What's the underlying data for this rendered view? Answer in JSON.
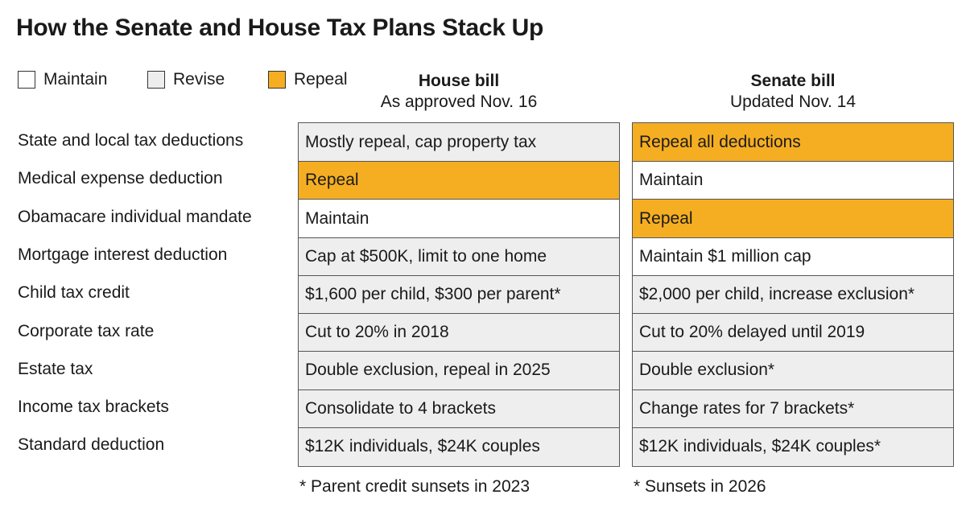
{
  "chart_data": {
    "type": "table",
    "title": "How the Senate and House Tax Plans Stack Up",
    "legend": [
      {
        "key": "maintain",
        "label": "Maintain",
        "color": "#ffffff"
      },
      {
        "key": "revise",
        "label": "Revise",
        "color": "#eeeeee"
      },
      {
        "key": "repeal",
        "label": "Repeal",
        "color": "#f5ae22"
      }
    ],
    "columns": [
      {
        "name": "House bill",
        "subtitle": "As approved Nov. 16"
      },
      {
        "name": "Senate bill",
        "subtitle": "Updated Nov. 14"
      }
    ],
    "rows": [
      {
        "label": "State and local tax deductions",
        "house": {
          "text": "Mostly repeal, cap property tax",
          "status": "revise"
        },
        "senate": {
          "text": "Repeal all deductions",
          "status": "repeal"
        }
      },
      {
        "label": "Medical expense deduction",
        "house": {
          "text": "Repeal",
          "status": "repeal"
        },
        "senate": {
          "text": "Maintain",
          "status": "maintain"
        }
      },
      {
        "label": "Obamacare individual mandate",
        "house": {
          "text": "Maintain",
          "status": "maintain"
        },
        "senate": {
          "text": "Repeal",
          "status": "repeal"
        }
      },
      {
        "label": "Mortgage interest deduction",
        "house": {
          "text": "Cap at $500K, limit to one home",
          "status": "revise"
        },
        "senate": {
          "text": "Maintain $1 million cap",
          "status": "maintain"
        }
      },
      {
        "label": "Child tax credit",
        "house": {
          "text": "$1,600 per child, $300 per parent*",
          "status": "revise"
        },
        "senate": {
          "text": "$2,000 per child, increase exclusion*",
          "status": "revise"
        }
      },
      {
        "label": "Corporate tax rate",
        "house": {
          "text": "Cut to 20% in 2018",
          "status": "revise"
        },
        "senate": {
          "text": "Cut to 20% delayed until 2019",
          "status": "revise"
        }
      },
      {
        "label": "Estate tax",
        "house": {
          "text": "Double exclusion, repeal in 2025",
          "status": "revise"
        },
        "senate": {
          "text": "Double exclusion*",
          "status": "revise"
        }
      },
      {
        "label": "Income tax brackets",
        "house": {
          "text": "Consolidate to 4 brackets",
          "status": "revise"
        },
        "senate": {
          "text": "Change rates for 7 brackets*",
          "status": "revise"
        }
      },
      {
        "label": "Standard deduction",
        "house": {
          "text": "$12K individuals, $24K couples",
          "status": "revise"
        },
        "senate": {
          "text": "$12K individuals, $24K couples*",
          "status": "revise"
        }
      }
    ],
    "footnotes": {
      "house": "* Parent credit sunsets in 2023",
      "senate": "* Sunsets in 2026"
    }
  }
}
